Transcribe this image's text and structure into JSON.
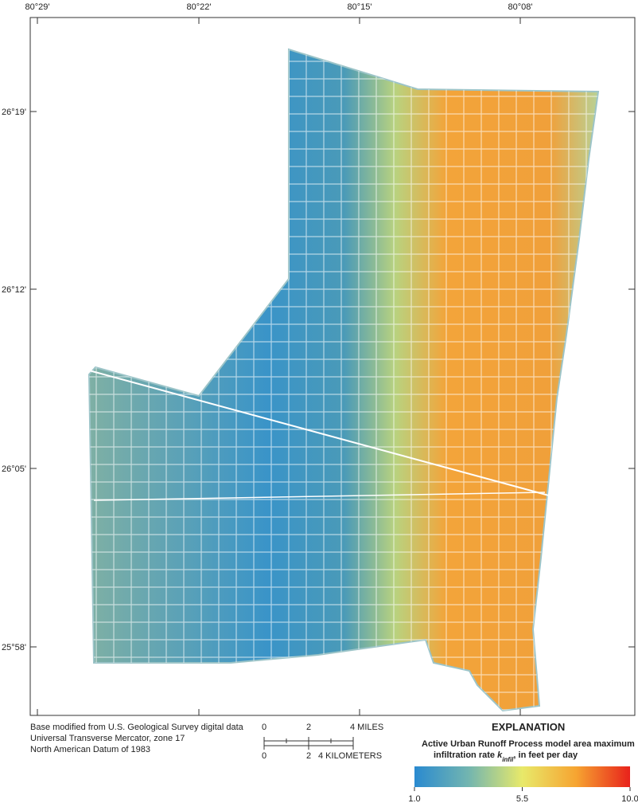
{
  "map": {
    "lon_ticks": [
      "80°29'",
      "80°22'",
      "80°15'",
      "80°08'"
    ],
    "lat_ticks": [
      "26°19'",
      "26°12'",
      "26°05'",
      "25°58'"
    ],
    "credits": [
      "Base modified from U.S. Geological Survey digital data",
      "Universal Transverse Mercator, zone 17",
      "North American Datum of 1983"
    ],
    "scale_miles": [
      "0",
      "2",
      "4 MILES"
    ],
    "scale_km": [
      "0",
      "2",
      "4 KILOMETERS"
    ],
    "legend": {
      "heading": "EXPLANATION",
      "title_line1": "Active Urban Runoff Process model area maximum",
      "title_line2_parts": [
        "infiltration rate ",
        "k",
        "infil",
        ", in feet per day"
      ],
      "range": [
        1,
        10
      ],
      "ticks": [
        {
          "value": 1,
          "label": "1.0"
        },
        5.5,
        {
          "value": 10,
          "label": "10.0"
        }
      ],
      "colors": [
        "#2a8ad0",
        "#72b5b0",
        "#e8e96a",
        "#f6a431",
        "#e8221b"
      ]
    }
  }
}
